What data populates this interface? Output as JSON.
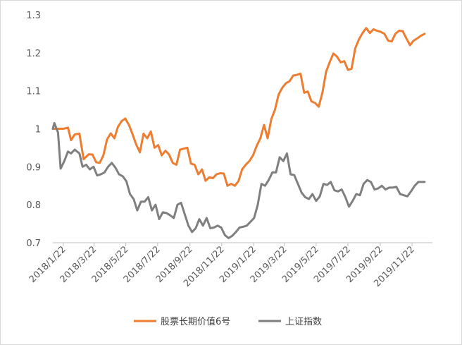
{
  "chart_data": {
    "type": "line",
    "title": "",
    "xlabel": "",
    "ylabel": "",
    "ylim": [
      0.7,
      1.3
    ],
    "yticks": [
      {
        "value": 0.7,
        "label": "0.7"
      },
      {
        "value": 0.8,
        "label": "0.8"
      },
      {
        "value": 0.9,
        "label": "0.9"
      },
      {
        "value": 1.0,
        "label": "1"
      },
      {
        "value": 1.1,
        "label": "1.1"
      },
      {
        "value": 1.2,
        "label": "1.2"
      },
      {
        "value": 1.3,
        "label": "1.3"
      }
    ],
    "xrange": [
      "2018-01-02",
      "2019-12-31"
    ],
    "xticks": [
      {
        "date": "2018-01-22",
        "label": "2018/1/22"
      },
      {
        "date": "2018-03-22",
        "label": "2018/3/22"
      },
      {
        "date": "2018-05-22",
        "label": "2018/5/22"
      },
      {
        "date": "2018-07-22",
        "label": "2018/7/22"
      },
      {
        "date": "2018-09-22",
        "label": "2018/9/22"
      },
      {
        "date": "2018-11-22",
        "label": "2018/11/22"
      },
      {
        "date": "2019-01-22",
        "label": "2019/1/22"
      },
      {
        "date": "2019-03-22",
        "label": "2019/3/22"
      },
      {
        "date": "2019-05-22",
        "label": "2019/5/22"
      },
      {
        "date": "2019-07-22",
        "label": "2019/7/22"
      },
      {
        "date": "2019-09-22",
        "label": "2019/9/22"
      },
      {
        "date": "2019-11-22",
        "label": "2019/11/22"
      }
    ],
    "grid": false,
    "legend_position": "bottom",
    "series": [
      {
        "name": "股票长期价值6号",
        "color": "#ED7D31",
        "points": [
          [
            "2018-01-02",
            1.0
          ],
          [
            "2018-01-12",
            1.0
          ],
          [
            "2018-01-22",
            1.0
          ],
          [
            "2018-01-31",
            1.003
          ],
          [
            "2018-02-06",
            0.97
          ],
          [
            "2018-02-13",
            0.985
          ],
          [
            "2018-02-22",
            0.987
          ],
          [
            "2018-03-02",
            0.92
          ],
          [
            "2018-03-12",
            0.933
          ],
          [
            "2018-03-19",
            0.932
          ],
          [
            "2018-03-26",
            0.912
          ],
          [
            "2018-04-02",
            0.91
          ],
          [
            "2018-04-09",
            0.93
          ],
          [
            "2018-04-16",
            0.972
          ],
          [
            "2018-04-23",
            0.988
          ],
          [
            "2018-04-30",
            0.975
          ],
          [
            "2018-05-07",
            1.005
          ],
          [
            "2018-05-14",
            1.02
          ],
          [
            "2018-05-21",
            1.027
          ],
          [
            "2018-05-28",
            1.01
          ],
          [
            "2018-06-04",
            0.985
          ],
          [
            "2018-06-11",
            0.958
          ],
          [
            "2018-06-18",
            0.938
          ],
          [
            "2018-06-25",
            0.987
          ],
          [
            "2018-07-02",
            0.975
          ],
          [
            "2018-07-09",
            0.993
          ],
          [
            "2018-07-16",
            0.95
          ],
          [
            "2018-07-23",
            0.957
          ],
          [
            "2018-07-30",
            0.93
          ],
          [
            "2018-08-06",
            0.942
          ],
          [
            "2018-08-13",
            0.932
          ],
          [
            "2018-08-20",
            0.91
          ],
          [
            "2018-08-27",
            0.905
          ],
          [
            "2018-09-03",
            0.945
          ],
          [
            "2018-09-17",
            0.95
          ],
          [
            "2018-09-24",
            0.908
          ],
          [
            "2018-10-01",
            0.905
          ],
          [
            "2018-10-08",
            0.88
          ],
          [
            "2018-10-15",
            0.893
          ],
          [
            "2018-10-22",
            0.863
          ],
          [
            "2018-10-29",
            0.872
          ],
          [
            "2018-11-05",
            0.87
          ],
          [
            "2018-11-12",
            0.88
          ],
          [
            "2018-11-19",
            0.883
          ],
          [
            "2018-11-26",
            0.882
          ],
          [
            "2018-12-03",
            0.85
          ],
          [
            "2018-12-10",
            0.855
          ],
          [
            "2018-12-17",
            0.85
          ],
          [
            "2018-12-24",
            0.862
          ],
          [
            "2018-12-31",
            0.893
          ],
          [
            "2019-01-07",
            0.905
          ],
          [
            "2019-01-14",
            0.915
          ],
          [
            "2019-01-21",
            0.93
          ],
          [
            "2019-01-28",
            0.955
          ],
          [
            "2019-02-04",
            0.975
          ],
          [
            "2019-02-11",
            1.01
          ],
          [
            "2019-02-18",
            0.975
          ],
          [
            "2019-02-25",
            1.025
          ],
          [
            "2019-03-04",
            1.05
          ],
          [
            "2019-03-11",
            1.09
          ],
          [
            "2019-03-18",
            1.108
          ],
          [
            "2019-03-25",
            1.12
          ],
          [
            "2019-04-01",
            1.125
          ],
          [
            "2019-04-08",
            1.14
          ],
          [
            "2019-04-15",
            1.142
          ],
          [
            "2019-04-22",
            1.145
          ],
          [
            "2019-04-29",
            1.095
          ],
          [
            "2019-05-06",
            1.098
          ],
          [
            "2019-05-13",
            1.072
          ],
          [
            "2019-05-20",
            1.068
          ],
          [
            "2019-05-27",
            1.058
          ],
          [
            "2019-06-03",
            1.095
          ],
          [
            "2019-06-10",
            1.15
          ],
          [
            "2019-06-17",
            1.175
          ],
          [
            "2019-06-24",
            1.198
          ],
          [
            "2019-07-01",
            1.19
          ],
          [
            "2019-07-08",
            1.175
          ],
          [
            "2019-07-15",
            1.178
          ],
          [
            "2019-07-22",
            1.155
          ],
          [
            "2019-07-29",
            1.158
          ],
          [
            "2019-08-05",
            1.212
          ],
          [
            "2019-08-12",
            1.235
          ],
          [
            "2019-08-19",
            1.252
          ],
          [
            "2019-08-26",
            1.265
          ],
          [
            "2019-09-02",
            1.252
          ],
          [
            "2019-09-09",
            1.262
          ],
          [
            "2019-09-16",
            1.258
          ],
          [
            "2019-09-23",
            1.255
          ],
          [
            "2019-09-30",
            1.25
          ],
          [
            "2019-10-07",
            1.232
          ],
          [
            "2019-10-14",
            1.23
          ],
          [
            "2019-10-21",
            1.25
          ],
          [
            "2019-10-28",
            1.258
          ],
          [
            "2019-11-04",
            1.257
          ],
          [
            "2019-11-11",
            1.238
          ],
          [
            "2019-11-18",
            1.22
          ],
          [
            "2019-11-25",
            1.232
          ],
          [
            "2019-12-02",
            1.238
          ],
          [
            "2019-12-09",
            1.245
          ],
          [
            "2019-12-16",
            1.25
          ]
        ]
      },
      {
        "name": "上证指数",
        "color": "#7F7F7F",
        "points": [
          [
            "2018-01-02",
            1.0
          ],
          [
            "2018-01-05",
            1.015
          ],
          [
            "2018-01-12",
            0.99
          ],
          [
            "2018-01-17",
            0.895
          ],
          [
            "2018-01-24",
            0.915
          ],
          [
            "2018-01-31",
            0.94
          ],
          [
            "2018-02-06",
            0.935
          ],
          [
            "2018-02-13",
            0.945
          ],
          [
            "2018-02-22",
            0.935
          ],
          [
            "2018-02-28",
            0.9
          ],
          [
            "2018-03-07",
            0.905
          ],
          [
            "2018-03-14",
            0.893
          ],
          [
            "2018-03-21",
            0.9
          ],
          [
            "2018-03-28",
            0.877
          ],
          [
            "2018-04-04",
            0.88
          ],
          [
            "2018-04-11",
            0.885
          ],
          [
            "2018-04-18",
            0.9
          ],
          [
            "2018-04-25",
            0.91
          ],
          [
            "2018-05-02",
            0.898
          ],
          [
            "2018-05-09",
            0.88
          ],
          [
            "2018-05-16",
            0.875
          ],
          [
            "2018-05-23",
            0.862
          ],
          [
            "2018-05-30",
            0.828
          ],
          [
            "2018-06-06",
            0.815
          ],
          [
            "2018-06-13",
            0.785
          ],
          [
            "2018-06-20",
            0.808
          ],
          [
            "2018-06-27",
            0.808
          ],
          [
            "2018-07-04",
            0.82
          ],
          [
            "2018-07-11",
            0.785
          ],
          [
            "2018-07-18",
            0.8
          ],
          [
            "2018-07-25",
            0.762
          ],
          [
            "2018-08-01",
            0.78
          ],
          [
            "2018-08-08",
            0.778
          ],
          [
            "2018-08-15",
            0.772
          ],
          [
            "2018-08-22",
            0.765
          ],
          [
            "2018-08-29",
            0.8
          ],
          [
            "2018-09-05",
            0.805
          ],
          [
            "2018-09-12",
            0.775
          ],
          [
            "2018-09-19",
            0.745
          ],
          [
            "2018-09-26",
            0.728
          ],
          [
            "2018-10-03",
            0.738
          ],
          [
            "2018-10-10",
            0.762
          ],
          [
            "2018-10-17",
            0.745
          ],
          [
            "2018-10-24",
            0.765
          ],
          [
            "2018-10-31",
            0.738
          ],
          [
            "2018-11-07",
            0.74
          ],
          [
            "2018-11-14",
            0.745
          ],
          [
            "2018-11-21",
            0.74
          ],
          [
            "2018-11-28",
            0.72
          ],
          [
            "2018-12-05",
            0.712
          ],
          [
            "2018-12-12",
            0.718
          ],
          [
            "2018-12-19",
            0.728
          ],
          [
            "2018-12-26",
            0.74
          ],
          [
            "2019-01-02",
            0.742
          ],
          [
            "2019-01-09",
            0.745
          ],
          [
            "2019-01-16",
            0.755
          ],
          [
            "2019-01-23",
            0.765
          ],
          [
            "2019-01-30",
            0.8
          ],
          [
            "2019-02-06",
            0.855
          ],
          [
            "2019-02-13",
            0.85
          ],
          [
            "2019-02-20",
            0.865
          ],
          [
            "2019-02-27",
            0.885
          ],
          [
            "2019-03-06",
            0.885
          ],
          [
            "2019-03-13",
            0.925
          ],
          [
            "2019-03-20",
            0.915
          ],
          [
            "2019-03-27",
            0.935
          ],
          [
            "2019-04-03",
            0.88
          ],
          [
            "2019-04-10",
            0.878
          ],
          [
            "2019-04-17",
            0.855
          ],
          [
            "2019-04-24",
            0.832
          ],
          [
            "2019-05-01",
            0.82
          ],
          [
            "2019-05-08",
            0.815
          ],
          [
            "2019-05-15",
            0.828
          ],
          [
            "2019-05-22",
            0.81
          ],
          [
            "2019-05-29",
            0.822
          ],
          [
            "2019-06-05",
            0.855
          ],
          [
            "2019-06-12",
            0.852
          ],
          [
            "2019-06-19",
            0.86
          ],
          [
            "2019-06-26",
            0.838
          ],
          [
            "2019-07-03",
            0.835
          ],
          [
            "2019-07-10",
            0.84
          ],
          [
            "2019-07-17",
            0.82
          ],
          [
            "2019-07-24",
            0.795
          ],
          [
            "2019-07-31",
            0.81
          ],
          [
            "2019-08-07",
            0.828
          ],
          [
            "2019-08-14",
            0.825
          ],
          [
            "2019-08-21",
            0.855
          ],
          [
            "2019-08-28",
            0.865
          ],
          [
            "2019-09-04",
            0.86
          ],
          [
            "2019-09-11",
            0.84
          ],
          [
            "2019-09-18",
            0.843
          ],
          [
            "2019-09-25",
            0.85
          ],
          [
            "2019-10-02",
            0.84
          ],
          [
            "2019-10-09",
            0.845
          ],
          [
            "2019-10-16",
            0.845
          ],
          [
            "2019-10-23",
            0.847
          ],
          [
            "2019-10-30",
            0.828
          ],
          [
            "2019-11-06",
            0.825
          ],
          [
            "2019-11-13",
            0.822
          ],
          [
            "2019-11-20",
            0.835
          ],
          [
            "2019-11-27",
            0.85
          ],
          [
            "2019-12-04",
            0.86
          ],
          [
            "2019-12-11",
            0.86
          ],
          [
            "2019-12-16",
            0.86
          ]
        ]
      }
    ]
  }
}
